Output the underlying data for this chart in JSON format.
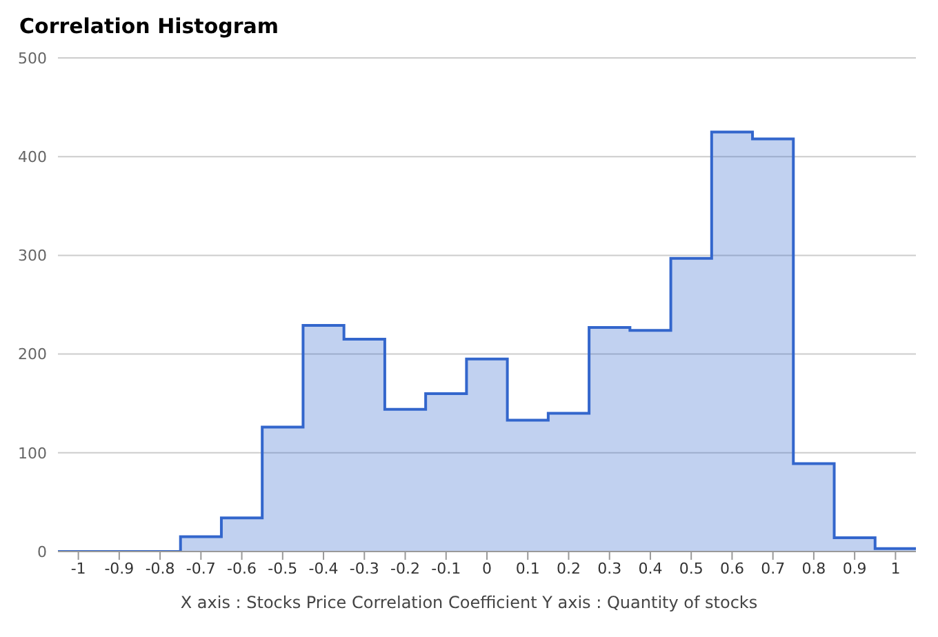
{
  "chart_data": {
    "type": "histogram",
    "title": "Correlation Histogram",
    "xlabel": "X axis : Stocks Price Correlation Coefficient  Y axis : Quantity of stocks",
    "bins": [
      -1.05,
      -0.95,
      -0.85,
      -0.75,
      -0.65,
      -0.55,
      -0.45,
      -0.35,
      -0.25,
      -0.15,
      -0.05,
      0.05,
      0.15,
      0.25,
      0.35,
      0.45,
      0.55,
      0.65,
      0.75,
      0.85,
      0.95,
      1.05
    ],
    "values": [
      0,
      0,
      0,
      15,
      34,
      126,
      229,
      215,
      144,
      160,
      195,
      133,
      140,
      227,
      224,
      297,
      425,
      418,
      89,
      14,
      3
    ],
    "color": "#3366cc",
    "xlim": [
      -1.05,
      1.05
    ],
    "xticks": [
      -1,
      -0.9,
      -0.8,
      -0.7,
      -0.6,
      -0.5,
      -0.4,
      -0.3,
      -0.2,
      -0.1,
      0,
      0.1,
      0.2,
      0.3,
      0.4,
      0.5,
      0.6,
      0.7,
      0.8,
      0.9,
      1
    ],
    "ylim": [
      0,
      500
    ],
    "yticks": [
      0,
      100,
      200,
      300,
      400,
      500
    ],
    "grid": "y"
  }
}
